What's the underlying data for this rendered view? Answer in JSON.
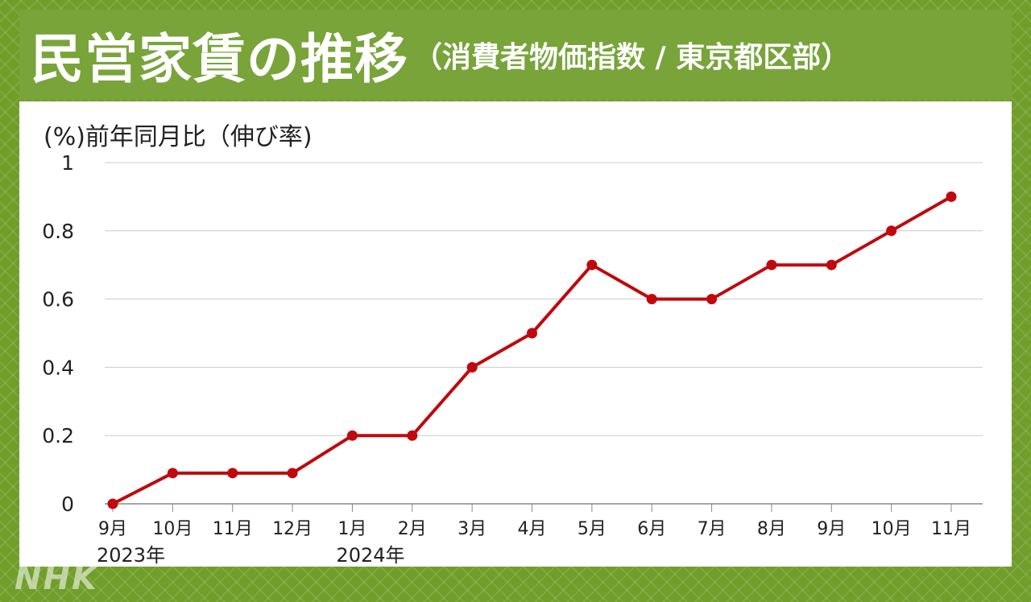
{
  "header": {
    "title_main": "民営家賃の推移",
    "title_sub": "（消費者物価指数 / 東京都区部）"
  },
  "logo_text": "NHK",
  "chart_data": {
    "type": "line",
    "ylabel": "(%)前年同月比（伸び率)",
    "categories": [
      "9月",
      "10月",
      "11月",
      "12月",
      "1月",
      "2月",
      "3月",
      "4月",
      "5月",
      "6月",
      "7月",
      "8月",
      "9月",
      "10月",
      "11月"
    ],
    "year_labels": [
      {
        "index": 0,
        "label": "2023年"
      },
      {
        "index": 4,
        "label": "2024年"
      }
    ],
    "series": [
      {
        "values": [
          0,
          0.09,
          0.09,
          0.09,
          0.2,
          0.2,
          0.4,
          0.5,
          0.7,
          0.6,
          0.6,
          0.7,
          0.7,
          0.8,
          0.9
        ]
      }
    ],
    "y_ticks": [
      "0",
      "0.2",
      "0.4",
      "0.6",
      "0.8",
      "1"
    ],
    "ylim": [
      0,
      1
    ],
    "grid": true,
    "colors": {
      "line": "#c0080e",
      "grid": "#cccccc",
      "text": "#222222"
    }
  }
}
